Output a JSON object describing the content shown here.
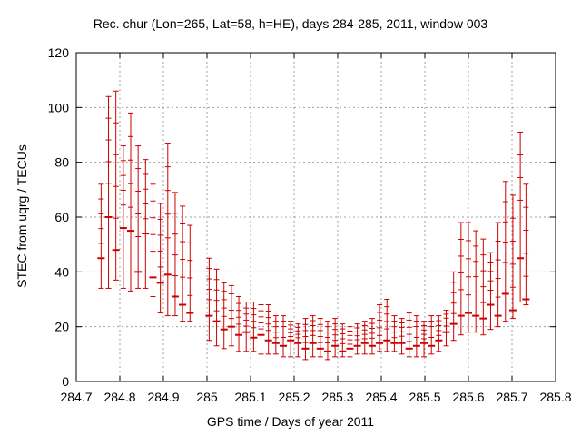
{
  "chart_data": {
    "type": "scatter",
    "title": "Rec. chur (Lon=265, Lat=58, h=HE), days 284-285, 2011, window 003",
    "xlabel": "GPS time / Days of year 2011",
    "ylabel": "STEC from uqrg / TECUs",
    "xlim": [
      284.7,
      285.8
    ],
    "ylim": [
      0,
      120
    ],
    "xticks": [
      284.7,
      284.8,
      284.9,
      285,
      285.1,
      285.2,
      285.3,
      285.4,
      285.5,
      285.6,
      285.7,
      285.8
    ],
    "xtick_labels": [
      "284.7",
      "284.8",
      "284.9",
      "285",
      "285.1",
      "285.2",
      "285.3",
      "285.4",
      "285.5",
      "285.6",
      "285.7",
      "285.8"
    ],
    "yticks": [
      0,
      20,
      40,
      60,
      80,
      100,
      120
    ],
    "ytick_labels": [
      "0",
      "20",
      "40",
      "60",
      "80",
      "100",
      "120"
    ],
    "grid": true,
    "color": "#cc0000",
    "series": [
      {
        "x": [
          284.757,
          284.774,
          284.791,
          284.808,
          284.825,
          284.842,
          284.859,
          284.876,
          284.893,
          284.91,
          284.927,
          284.944,
          284.961,
          285.005,
          285.022,
          285.039,
          285.056,
          285.073,
          285.09,
          285.107,
          285.124,
          285.141,
          285.158,
          285.175,
          285.192,
          285.209,
          285.226,
          285.243,
          285.26,
          285.277,
          285.294,
          285.311,
          285.328,
          285.345,
          285.362,
          285.379,
          285.396,
          285.413,
          285.43,
          285.447,
          285.464,
          285.481,
          285.498,
          285.515,
          285.532,
          285.549,
          285.566,
          285.583,
          285.6,
          285.617,
          285.634,
          285.651,
          285.668,
          285.685,
          285.702,
          285.719,
          285.732
        ],
        "y": [
          45,
          60,
          48,
          56,
          55,
          40,
          54,
          38,
          36,
          39,
          31,
          28,
          25,
          24,
          22,
          19,
          20,
          17,
          18,
          16,
          17,
          15,
          14,
          13,
          15,
          14,
          12,
          14,
          12,
          11,
          13,
          11,
          12,
          13,
          14,
          13,
          14,
          15,
          14,
          14,
          12,
          13,
          14,
          13,
          15,
          18,
          21,
          24,
          25,
          24,
          23,
          28,
          24,
          32,
          26,
          45,
          30
        ],
        "y_high": [
          72,
          104,
          106,
          86,
          98,
          86,
          81,
          72,
          65,
          87,
          69,
          64,
          57,
          45,
          41,
          36,
          35,
          31,
          29,
          29,
          28,
          28,
          24,
          24,
          22,
          21,
          23,
          24,
          23,
          22,
          23,
          21,
          20,
          21,
          22,
          23,
          28,
          30,
          24,
          23,
          25,
          24,
          22,
          24,
          24,
          26,
          40,
          58,
          58,
          55,
          52,
          47,
          58,
          73,
          68,
          91,
          72
        ],
        "y_low": [
          34,
          34,
          37,
          34,
          33,
          34,
          34,
          31,
          25,
          24,
          24,
          22,
          22,
          15,
          13,
          12,
          13,
          11,
          11,
          11,
          10,
          10,
          10,
          9,
          9,
          9,
          8,
          9,
          9,
          8,
          9,
          9,
          9,
          10,
          10,
          10,
          11,
          11,
          11,
          10,
          9,
          9,
          9,
          10,
          11,
          13,
          15,
          17,
          18,
          18,
          17,
          19,
          20,
          22,
          23,
          29,
          28
        ]
      }
    ]
  }
}
